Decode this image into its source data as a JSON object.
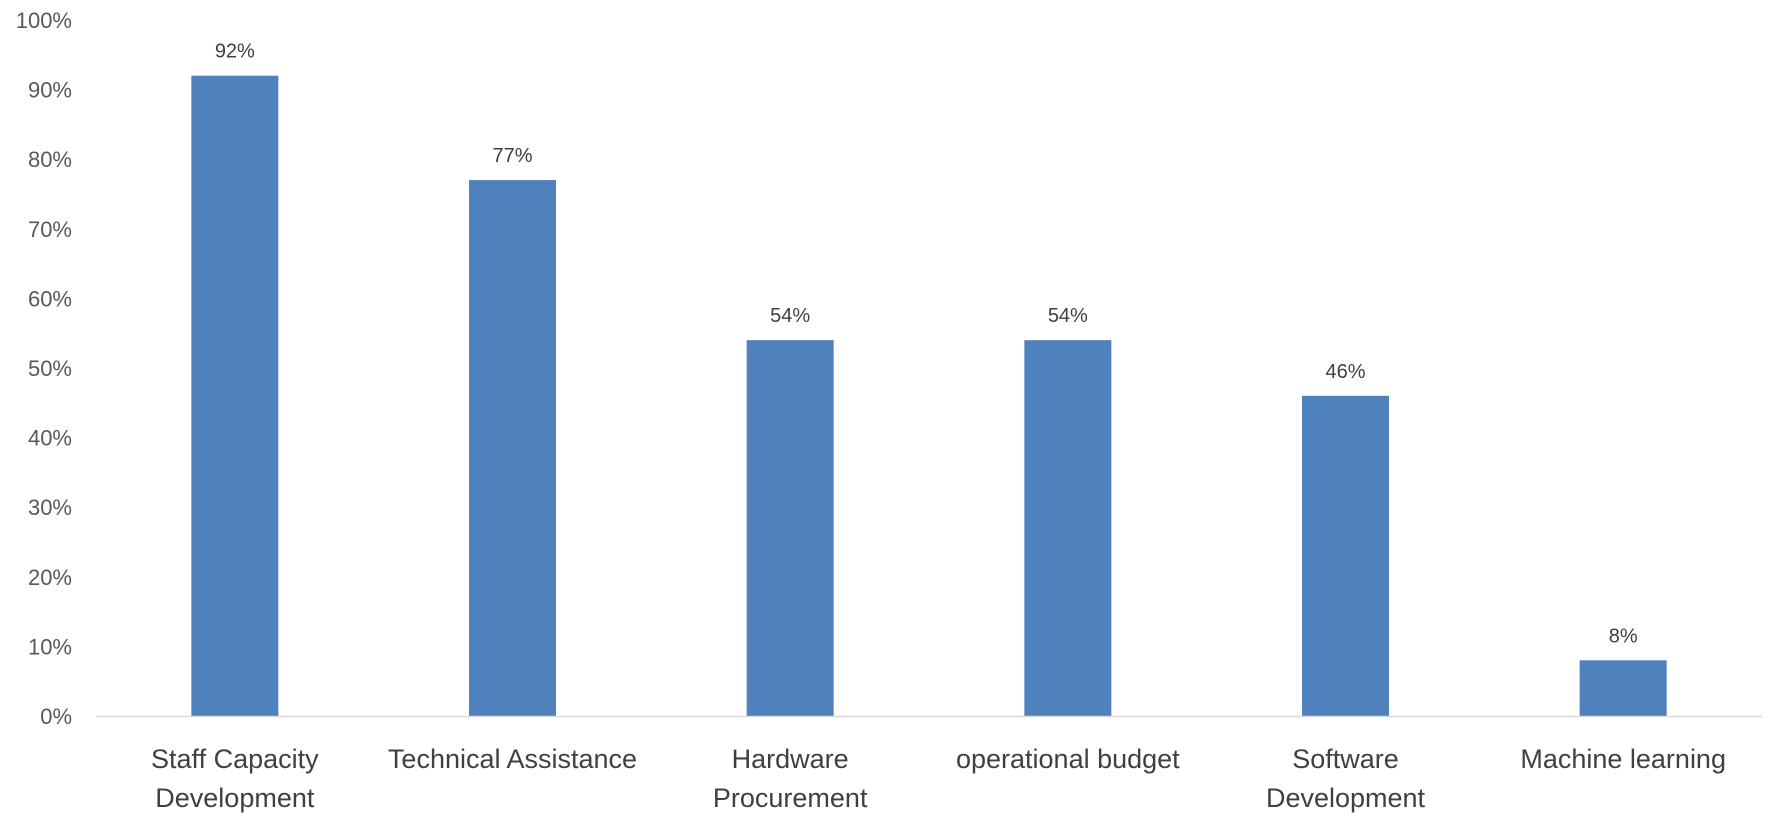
{
  "chart_data": {
    "type": "bar",
    "title": "",
    "xlabel": "",
    "ylabel": "",
    "categories": [
      [
        "Staff Capacity",
        "Development"
      ],
      [
        "Technical Assistance"
      ],
      [
        "Hardware",
        "Procurement"
      ],
      [
        "operational budget"
      ],
      [
        "Software",
        "Development"
      ],
      [
        "Machine learning"
      ]
    ],
    "values": [
      92,
      77,
      54,
      54,
      46,
      8
    ],
    "data_labels": [
      "92%",
      "77%",
      "54%",
      "54%",
      "46%",
      "8%"
    ],
    "y_ticks": [
      "0%",
      "10%",
      "20%",
      "30%",
      "40%",
      "50%",
      "60%",
      "70%",
      "80%",
      "90%",
      "100%"
    ],
    "ylim": [
      0,
      100
    ],
    "grid": false,
    "legend": "none",
    "bar_color": "#4F81BD",
    "axis_color": "#D9D9D9"
  }
}
